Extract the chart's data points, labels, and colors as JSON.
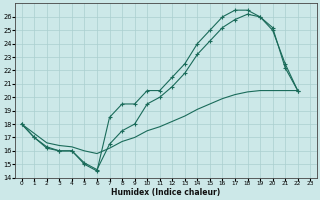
{
  "line1_x": [
    0,
    1,
    2,
    3,
    4,
    5,
    6,
    7,
    8,
    9,
    10,
    11,
    12,
    13,
    14,
    15,
    16,
    17,
    18,
    19,
    20,
    21,
    22
  ],
  "line1_y": [
    18,
    17,
    16.3,
    16,
    16,
    15,
    14.5,
    18.5,
    19.5,
    19.5,
    20.5,
    20.5,
    21.5,
    22.5,
    24,
    25,
    26,
    26.5,
    26.5,
    26,
    25,
    22.5,
    20.5
  ],
  "line2_x": [
    0,
    1,
    2,
    3,
    4,
    5,
    6,
    7,
    8,
    9,
    10,
    11,
    12,
    13,
    14,
    15,
    16,
    17,
    18,
    19,
    20,
    21,
    22
  ],
  "line2_y": [
    18,
    17.0,
    16.2,
    16.0,
    16.0,
    15.1,
    14.6,
    16.5,
    17.5,
    18.0,
    19.5,
    20.0,
    20.8,
    21.8,
    23.2,
    24.2,
    25.2,
    25.8,
    26.2,
    26.0,
    25.2,
    22.2,
    20.5
  ],
  "line3_x": [
    0,
    1,
    2,
    3,
    4,
    5,
    6,
    7,
    8,
    9,
    10,
    11,
    12,
    13,
    14,
    15,
    16,
    17,
    18,
    19,
    20,
    21,
    22
  ],
  "line3_y": [
    18,
    17.3,
    16.6,
    16.4,
    16.3,
    16.0,
    15.8,
    16.2,
    16.7,
    17.0,
    17.5,
    17.8,
    18.2,
    18.6,
    19.1,
    19.5,
    19.9,
    20.2,
    20.4,
    20.5,
    20.5,
    20.5,
    20.5
  ],
  "color": "#1a6b5a",
  "bg_color": "#cce8e8",
  "grid_color": "#aacfcf",
  "xlabel": "Humidex (Indice chaleur)",
  "xlim": [
    -0.5,
    23.5
  ],
  "ylim": [
    14,
    27
  ],
  "yticks": [
    14,
    15,
    16,
    17,
    18,
    19,
    20,
    21,
    22,
    23,
    24,
    25,
    26
  ],
  "xticks": [
    0,
    1,
    2,
    3,
    4,
    5,
    6,
    7,
    8,
    9,
    10,
    11,
    12,
    13,
    14,
    15,
    16,
    17,
    18,
    19,
    20,
    21,
    22,
    23
  ]
}
